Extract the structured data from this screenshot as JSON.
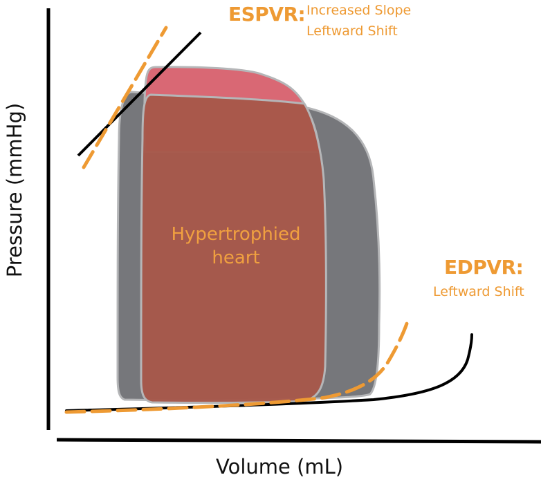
{
  "labels": {
    "espvr_title": "ESPVR:",
    "espvr_line1": "Increased Slope",
    "espvr_line2": "Leftward Shift",
    "edpvr_title": "EDPVR:",
    "edpvr_line1": "Leftward Shift",
    "loop_line1": "Hypertrophied",
    "loop_line2": "heart",
    "x_axis": "Volume (mL)",
    "y_axis": "Pressure (mmHg)"
  },
  "colors": {
    "orange": "#ee9a33",
    "normal_loop": "#6c6d71",
    "hypertrophied_fill": "#a7574a",
    "hypertrophied_top": "#d96874",
    "outline": "#b5b6b8"
  }
}
